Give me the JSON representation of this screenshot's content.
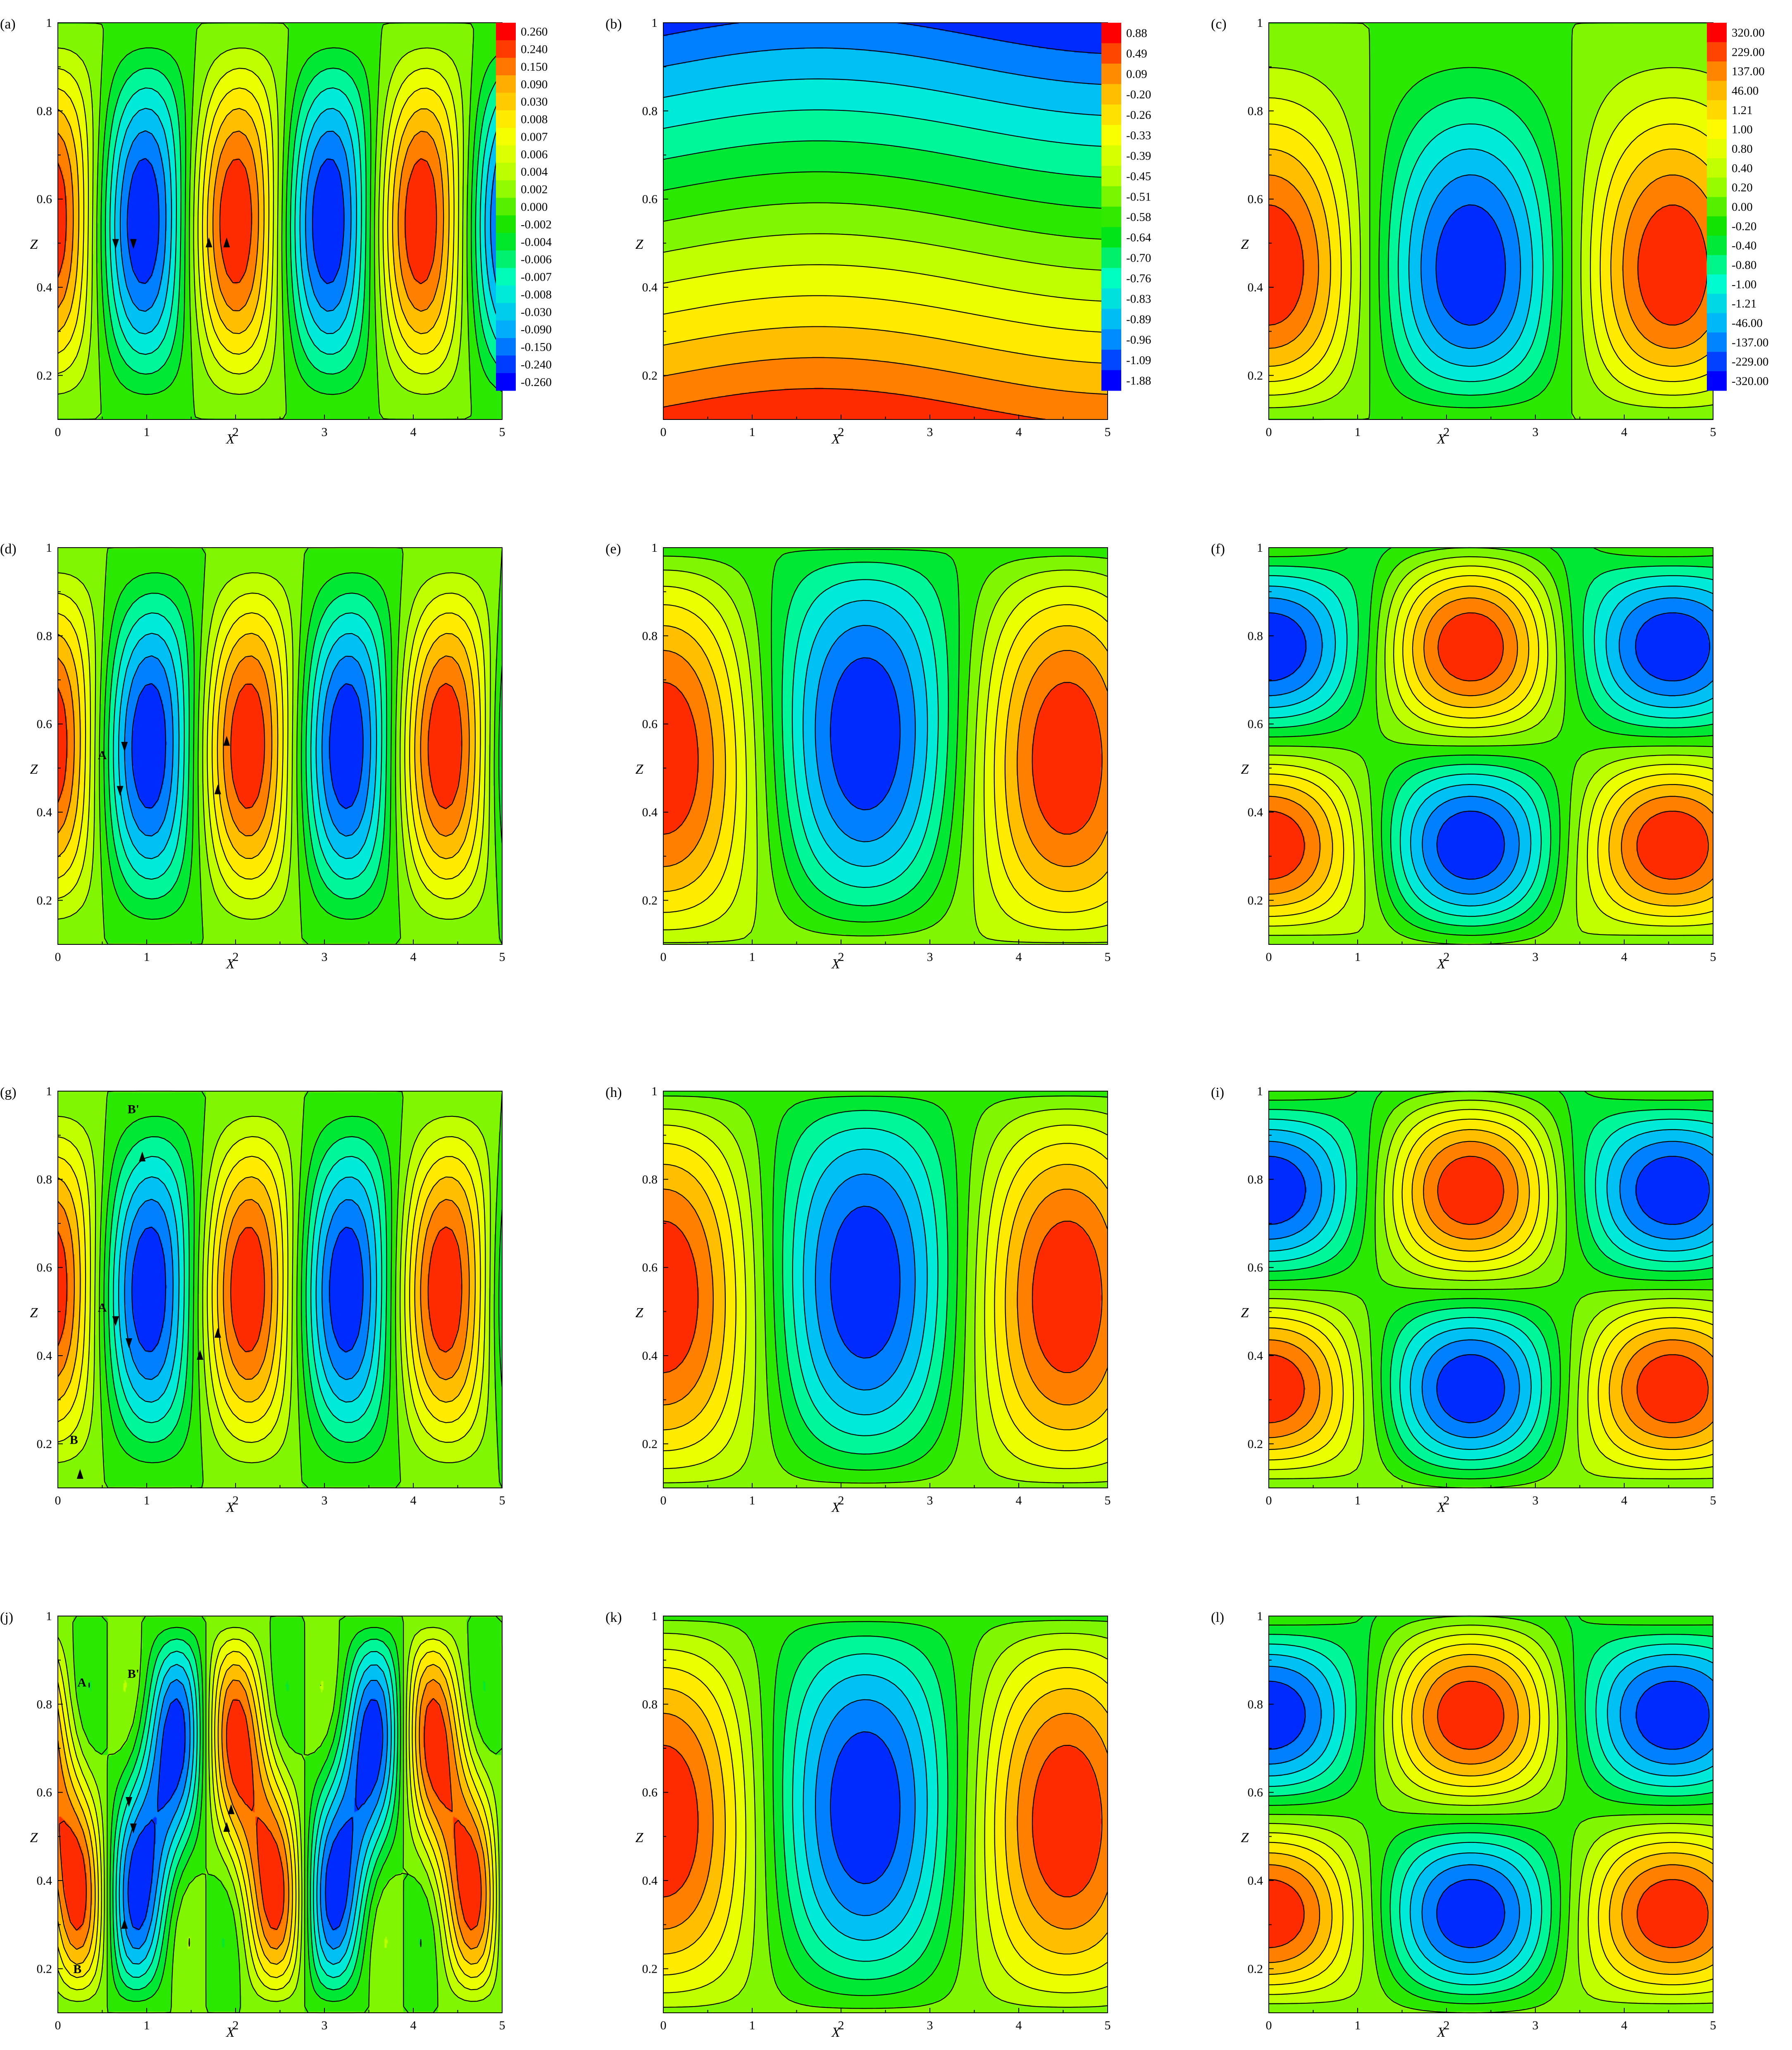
{
  "figure": {
    "layout": "4x3 grid of contour maps",
    "colormap": [
      "#0000ff",
      "#00aaff",
      "#00ffcc",
      "#00e000",
      "#aaff00",
      "#ffff00",
      "#ffaa00",
      "#ff0000"
    ],
    "contour_color": "#000000",
    "background": "#ffffff"
  },
  "chart_data": [
    {
      "id": "a",
      "label": "(a)",
      "type": "heatmap",
      "field": "cells",
      "n": 4.8,
      "phase": 1.5708,
      "amp": 0.88,
      "xlabel": "X",
      "ylabel": "Z",
      "xlim": [
        0,
        5
      ],
      "ylim": [
        0.1,
        1
      ],
      "xticks": [
        "0",
        "1",
        "2",
        "3",
        "4",
        "5"
      ],
      "yticks": [
        "0.2",
        "0.4",
        "0.6",
        "0.8",
        "1"
      ],
      "colorbar": [
        "0.260",
        "0.240",
        "0.150",
        "0.090",
        "0.030",
        "0.008",
        "0.007",
        "0.006",
        "0.004",
        "0.002",
        "0.000",
        "-0.002",
        "-0.004",
        "-0.006",
        "-0.007",
        "-0.008",
        "-0.030",
        "-0.090",
        "-0.150",
        "-0.240",
        "-0.260"
      ],
      "markers": [
        {
          "x": 0.65,
          "z": 0.5,
          "dir": "down"
        },
        {
          "x": 0.85,
          "z": 0.5,
          "dir": "down"
        },
        {
          "x": 1.7,
          "z": 0.5,
          "dir": "up"
        },
        {
          "x": 1.9,
          "z": 0.5,
          "dir": "up"
        }
      ],
      "labels": []
    },
    {
      "id": "b",
      "label": "(b)",
      "type": "heatmap",
      "field": "strat",
      "xlabel": "X",
      "ylabel": "Z",
      "xlim": [
        0,
        5
      ],
      "ylim": [
        0.1,
        1
      ],
      "xticks": [
        "0",
        "1",
        "2",
        "3",
        "4",
        "5"
      ],
      "yticks": [
        "0.2",
        "0.4",
        "0.6",
        "0.8",
        "1"
      ],
      "colorbar": [
        "0.88",
        "0.49",
        "0.09",
        "-0.20",
        "-0.26",
        "-0.33",
        "-0.39",
        "-0.45",
        "-0.51",
        "-0.58",
        "-0.64",
        "-0.70",
        "-0.76",
        "-0.83",
        "-0.89",
        "-0.96",
        "-1.09",
        "-1.88"
      ],
      "markers": [],
      "labels": []
    },
    {
      "id": "c",
      "label": "(c)",
      "type": "heatmap",
      "field": "fingers",
      "n": 2.2,
      "phase": 0,
      "amp": 0.3,
      "xlabel": "X",
      "ylabel": "Z",
      "xlim": [
        0,
        5
      ],
      "ylim": [
        0.1,
        1
      ],
      "xticks": [
        "0",
        "1",
        "2",
        "3",
        "4",
        "5"
      ],
      "yticks": [
        "0.2",
        "0.4",
        "0.6",
        "0.8",
        "1"
      ],
      "colorbar": [
        "320.00",
        "229.00",
        "137.00",
        "46.00",
        "1.21",
        "1.00",
        "0.80",
        "0.40",
        "0.20",
        "0.00",
        "-0.20",
        "-0.40",
        "-0.80",
        "-1.00",
        "-1.21",
        "-46.00",
        "-137.00",
        "-229.00",
        "-320.00"
      ],
      "markers": [],
      "labels": []
    },
    {
      "id": "d",
      "label": "(d)",
      "type": "heatmap",
      "field": "cells",
      "n": 4.5,
      "phase": 1.5708,
      "amp": 0.95,
      "xlabel": "X",
      "ylabel": "Z",
      "xlim": [
        0,
        5
      ],
      "ylim": [
        0.1,
        1
      ],
      "xticks": [
        "0",
        "1",
        "2",
        "3",
        "4",
        "5"
      ],
      "yticks": [
        "0.2",
        "0.4",
        "0.6",
        "0.8",
        "1"
      ],
      "markers": [
        {
          "x": 0.75,
          "z": 0.55,
          "dir": "down"
        },
        {
          "x": 0.7,
          "z": 0.45,
          "dir": "down"
        },
        {
          "x": 1.8,
          "z": 0.45,
          "dir": "up"
        },
        {
          "x": 1.9,
          "z": 0.56,
          "dir": "up"
        }
      ],
      "labels": [
        {
          "text": "A",
          "x": 0.5,
          "z": 0.52
        }
      ]
    },
    {
      "id": "e",
      "label": "(e)",
      "type": "heatmap",
      "field": "plumes",
      "n": 2.2,
      "phase": 0,
      "amp": 0.6,
      "xlabel": "X",
      "ylabel": "Z",
      "xlim": [
        0,
        5
      ],
      "ylim": [
        0.1,
        1
      ],
      "xticks": [
        "0",
        "1",
        "2",
        "3",
        "4",
        "5"
      ],
      "yticks": [
        "0.2",
        "0.4",
        "0.6",
        "0.8",
        "1"
      ],
      "markers": [],
      "labels": []
    },
    {
      "id": "f",
      "label": "(f)",
      "type": "heatmap",
      "field": "blobs",
      "n": 2.2,
      "phase": 0,
      "amp": 0.75,
      "xlabel": "X",
      "ylabel": "Z",
      "xlim": [
        0,
        5
      ],
      "ylim": [
        0.1,
        1
      ],
      "xticks": [
        "0",
        "1",
        "2",
        "3",
        "4",
        "5"
      ],
      "yticks": [
        "0.2",
        "0.4",
        "0.6",
        "0.8",
        "1"
      ],
      "markers": [],
      "labels": []
    },
    {
      "id": "g",
      "label": "(g)",
      "type": "heatmap",
      "field": "cells",
      "n": 4.5,
      "phase": 1.5708,
      "amp": 1.0,
      "xlabel": "X",
      "ylabel": "Z",
      "xlim": [
        0,
        5
      ],
      "ylim": [
        0.1,
        1
      ],
      "xticks": [
        "0",
        "1",
        "2",
        "3",
        "4",
        "5"
      ],
      "yticks": [
        "0.2",
        "0.4",
        "0.6",
        "0.8",
        "1"
      ],
      "markers": [
        {
          "x": 0.65,
          "z": 0.48,
          "dir": "down"
        },
        {
          "x": 0.8,
          "z": 0.43,
          "dir": "down"
        },
        {
          "x": 1.6,
          "z": 0.4,
          "dir": "up"
        },
        {
          "x": 1.8,
          "z": 0.45,
          "dir": "up"
        },
        {
          "x": 0.95,
          "z": 0.85,
          "dir": "up"
        },
        {
          "x": 0.25,
          "z": 0.13,
          "dir": "up"
        }
      ],
      "labels": [
        {
          "text": "A",
          "x": 0.5,
          "z": 0.5
        },
        {
          "text": "B'",
          "x": 0.85,
          "z": 0.95
        },
        {
          "text": "B",
          "x": 0.18,
          "z": 0.2
        }
      ]
    },
    {
      "id": "h",
      "label": "(h)",
      "type": "heatmap",
      "field": "plumes",
      "n": 2.2,
      "phase": 0,
      "amp": 1.0,
      "xlabel": "X",
      "ylabel": "Z",
      "xlim": [
        0,
        5
      ],
      "ylim": [
        0.1,
        1
      ],
      "xticks": [
        "0",
        "1",
        "2",
        "3",
        "4",
        "5"
      ],
      "yticks": [
        "0.2",
        "0.4",
        "0.6",
        "0.8",
        "1"
      ],
      "markers": [],
      "labels": []
    },
    {
      "id": "i",
      "label": "(i)",
      "type": "heatmap",
      "field": "blobs",
      "n": 2.2,
      "phase": 0,
      "amp": 0.9,
      "xlabel": "X",
      "ylabel": "Z",
      "xlim": [
        0,
        5
      ],
      "ylim": [
        0.1,
        1
      ],
      "xticks": [
        "0",
        "1",
        "2",
        "3",
        "4",
        "5"
      ],
      "yticks": [
        "0.2",
        "0.4",
        "0.6",
        "0.8",
        "1"
      ],
      "markers": [],
      "labels": []
    },
    {
      "id": "j",
      "label": "(j)",
      "type": "heatmap",
      "field": "cells2",
      "n": 4.5,
      "phase": 1.5708,
      "amp": 1.0,
      "xlabel": "X",
      "ylabel": "Z",
      "xlim": [
        0,
        5
      ],
      "ylim": [
        0.1,
        1
      ],
      "xticks": [
        "0",
        "1",
        "2",
        "3",
        "4",
        "5"
      ],
      "yticks": [
        "0.2",
        "0.4",
        "0.6",
        "0.8",
        "1"
      ],
      "markers": [
        {
          "x": 0.8,
          "z": 0.58,
          "dir": "down"
        },
        {
          "x": 0.85,
          "z": 0.52,
          "dir": "down"
        },
        {
          "x": 1.9,
          "z": 0.52,
          "dir": "up"
        },
        {
          "x": 1.95,
          "z": 0.56,
          "dir": "up"
        },
        {
          "x": 0.75,
          "z": 0.3,
          "dir": "up"
        }
      ],
      "labels": [
        {
          "text": "A",
          "x": 0.27,
          "z": 0.84
        },
        {
          "text": "B'",
          "x": 0.85,
          "z": 0.86
        },
        {
          "text": "B",
          "x": 0.22,
          "z": 0.19
        }
      ]
    },
    {
      "id": "k",
      "label": "(k)",
      "type": "heatmap",
      "field": "plumes",
      "n": 2.2,
      "phase": 0,
      "amp": 1.1,
      "xlabel": "X",
      "ylabel": "Z",
      "xlim": [
        0,
        5
      ],
      "ylim": [
        0.1,
        1
      ],
      "xticks": [
        "0",
        "1",
        "2",
        "3",
        "4",
        "5"
      ],
      "yticks": [
        "0.2",
        "0.4",
        "0.6",
        "0.8",
        "1"
      ],
      "markers": [],
      "labels": []
    },
    {
      "id": "l",
      "label": "(l)",
      "type": "heatmap",
      "field": "blobs",
      "n": 2.2,
      "phase": 0,
      "amp": 1.0,
      "xlabel": "X",
      "ylabel": "Z",
      "xlim": [
        0,
        5
      ],
      "ylim": [
        0.1,
        1
      ],
      "xticks": [
        "0",
        "1",
        "2",
        "3",
        "4",
        "5"
      ],
      "yticks": [
        "0.2",
        "0.4",
        "0.6",
        "0.8",
        "1"
      ],
      "markers": [],
      "labels": []
    }
  ]
}
